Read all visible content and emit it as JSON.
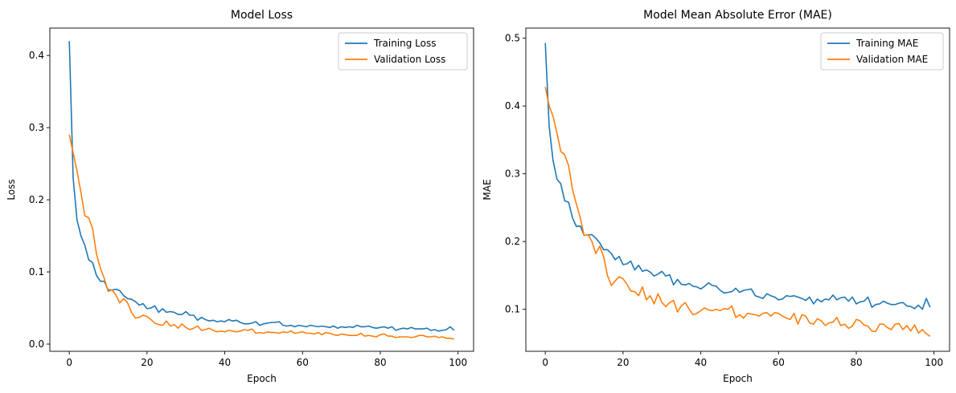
{
  "colors": {
    "training": "#1f77b4",
    "validation": "#ff7f0e"
  },
  "chart_data": [
    {
      "type": "line",
      "title": "Model Loss",
      "xlabel": "Epoch",
      "ylabel": "Loss",
      "xlim": [
        -5,
        104
      ],
      "ylim": [
        -0.01,
        0.438
      ],
      "xticks": [
        0,
        20,
        40,
        60,
        80,
        100
      ],
      "yticks": [
        0.0,
        0.1,
        0.2,
        0.3,
        0.4
      ],
      "ytick_labels": [
        "0.0",
        "0.1",
        "0.2",
        "0.3",
        "0.4"
      ],
      "grid": false,
      "legend": "top-right",
      "series": [
        {
          "name": "Training Loss",
          "color": "#1f77b4",
          "x": [
            0,
            1,
            2,
            3,
            4,
            5,
            6,
            7,
            8,
            9,
            10,
            11,
            12,
            13,
            14,
            15,
            16,
            17,
            18,
            19,
            20,
            21,
            22,
            23,
            24,
            25,
            26,
            27,
            28,
            29,
            30,
            31,
            32,
            33,
            34,
            35,
            36,
            37,
            38,
            39,
            40,
            41,
            42,
            43,
            44,
            45,
            46,
            47,
            48,
            49,
            50,
            51,
            52,
            53,
            54,
            55,
            56,
            57,
            58,
            59,
            60,
            61,
            62,
            63,
            64,
            65,
            66,
            67,
            68,
            69,
            70,
            71,
            72,
            73,
            74,
            75,
            76,
            77,
            78,
            79,
            80,
            81,
            82,
            83,
            84,
            85,
            86,
            87,
            88,
            89,
            90,
            91,
            92,
            93,
            94,
            95,
            96,
            97,
            98,
            99
          ],
          "values": [
            0.42,
            0.23,
            0.172,
            0.15,
            0.137,
            0.117,
            0.113,
            0.095,
            0.087,
            0.087,
            0.075,
            0.075,
            0.076,
            0.074,
            0.067,
            0.063,
            0.062,
            0.059,
            0.054,
            0.056,
            0.049,
            0.05,
            0.053,
            0.044,
            0.049,
            0.044,
            0.045,
            0.044,
            0.041,
            0.041,
            0.045,
            0.04,
            0.04,
            0.033,
            0.037,
            0.034,
            0.032,
            0.033,
            0.031,
            0.032,
            0.031,
            0.034,
            0.032,
            0.033,
            0.03,
            0.028,
            0.028,
            0.029,
            0.031,
            0.026,
            0.028,
            0.029,
            0.03,
            0.03,
            0.031,
            0.026,
            0.025,
            0.026,
            0.024,
            0.026,
            0.025,
            0.024,
            0.026,
            0.025,
            0.024,
            0.025,
            0.024,
            0.023,
            0.025,
            0.022,
            0.024,
            0.023,
            0.024,
            0.023,
            0.026,
            0.024,
            0.024,
            0.025,
            0.023,
            0.022,
            0.023,
            0.024,
            0.022,
            0.024,
            0.019,
            0.021,
            0.022,
            0.021,
            0.023,
            0.021,
            0.021,
            0.021,
            0.022,
            0.019,
            0.02,
            0.018,
            0.019,
            0.02,
            0.024,
            0.019
          ]
        },
        {
          "name": "Validation Loss",
          "color": "#ff7f0e",
          "x": [
            0,
            1,
            2,
            3,
            4,
            5,
            6,
            7,
            8,
            9,
            10,
            11,
            12,
            13,
            14,
            15,
            16,
            17,
            18,
            19,
            20,
            21,
            22,
            23,
            24,
            25,
            26,
            27,
            28,
            29,
            30,
            31,
            32,
            33,
            34,
            35,
            36,
            37,
            38,
            39,
            40,
            41,
            42,
            43,
            44,
            45,
            46,
            47,
            48,
            49,
            50,
            51,
            52,
            53,
            54,
            55,
            56,
            57,
            58,
            59,
            60,
            61,
            62,
            63,
            64,
            65,
            66,
            67,
            68,
            69,
            70,
            71,
            72,
            73,
            74,
            75,
            76,
            77,
            78,
            79,
            80,
            81,
            82,
            83,
            84,
            85,
            86,
            87,
            88,
            89,
            90,
            91,
            92,
            93,
            94,
            95,
            96,
            97,
            98,
            99
          ],
          "values": [
            0.29,
            0.265,
            0.24,
            0.21,
            0.178,
            0.175,
            0.16,
            0.125,
            0.105,
            0.091,
            0.073,
            0.075,
            0.068,
            0.057,
            0.063,
            0.057,
            0.044,
            0.036,
            0.037,
            0.04,
            0.038,
            0.034,
            0.029,
            0.027,
            0.026,
            0.032,
            0.025,
            0.027,
            0.022,
            0.028,
            0.023,
            0.02,
            0.022,
            0.025,
            0.019,
            0.02,
            0.022,
            0.019,
            0.017,
            0.018,
            0.017,
            0.019,
            0.018,
            0.017,
            0.018,
            0.02,
            0.019,
            0.021,
            0.015,
            0.016,
            0.015,
            0.017,
            0.016,
            0.016,
            0.015,
            0.017,
            0.016,
            0.018,
            0.015,
            0.016,
            0.017,
            0.015,
            0.015,
            0.014,
            0.016,
            0.013,
            0.016,
            0.015,
            0.013,
            0.012,
            0.014,
            0.013,
            0.012,
            0.012,
            0.012,
            0.015,
            0.011,
            0.012,
            0.011,
            0.01,
            0.013,
            0.014,
            0.011,
            0.011,
            0.009,
            0.01,
            0.01,
            0.01,
            0.009,
            0.01,
            0.012,
            0.012,
            0.01,
            0.01,
            0.011,
            0.009,
            0.01,
            0.008,
            0.008,
            0.007
          ]
        }
      ]
    },
    {
      "type": "line",
      "title": "Model Mean Absolute Error (MAE)",
      "xlabel": "Epoch",
      "ylabel": "MAE",
      "xlim": [
        -5,
        104
      ],
      "ylim": [
        0.038,
        0.515
      ],
      "xticks": [
        0,
        20,
        40,
        60,
        80,
        100
      ],
      "yticks": [
        0.1,
        0.2,
        0.3,
        0.4,
        0.5
      ],
      "ytick_labels": [
        "0.1",
        "0.2",
        "0.3",
        "0.4",
        "0.5"
      ],
      "grid": false,
      "legend": "top-right",
      "series": [
        {
          "name": "Training MAE",
          "color": "#1f77b4",
          "x": [
            0,
            1,
            2,
            3,
            4,
            5,
            6,
            7,
            8,
            9,
            10,
            11,
            12,
            13,
            14,
            15,
            16,
            17,
            18,
            19,
            20,
            21,
            22,
            23,
            24,
            25,
            26,
            27,
            28,
            29,
            30,
            31,
            32,
            33,
            34,
            35,
            36,
            37,
            38,
            39,
            40,
            41,
            42,
            43,
            44,
            45,
            46,
            47,
            48,
            49,
            50,
            51,
            52,
            53,
            54,
            55,
            56,
            57,
            58,
            59,
            60,
            61,
            62,
            63,
            64,
            65,
            66,
            67,
            68,
            69,
            70,
            71,
            72,
            73,
            74,
            75,
            76,
            77,
            78,
            79,
            80,
            81,
            82,
            83,
            84,
            85,
            86,
            87,
            88,
            89,
            90,
            91,
            92,
            93,
            94,
            95,
            96,
            97,
            98,
            99
          ],
          "values": [
            0.493,
            0.37,
            0.32,
            0.292,
            0.285,
            0.26,
            0.258,
            0.235,
            0.222,
            0.223,
            0.209,
            0.21,
            0.21,
            0.205,
            0.198,
            0.188,
            0.188,
            0.182,
            0.173,
            0.178,
            0.166,
            0.167,
            0.171,
            0.158,
            0.165,
            0.156,
            0.158,
            0.155,
            0.149,
            0.152,
            0.156,
            0.149,
            0.151,
            0.136,
            0.144,
            0.137,
            0.136,
            0.138,
            0.134,
            0.133,
            0.13,
            0.134,
            0.139,
            0.135,
            0.134,
            0.128,
            0.124,
            0.125,
            0.126,
            0.131,
            0.125,
            0.128,
            0.129,
            0.13,
            0.12,
            0.118,
            0.116,
            0.123,
            0.12,
            0.118,
            0.114,
            0.115,
            0.12,
            0.119,
            0.12,
            0.118,
            0.116,
            0.113,
            0.118,
            0.108,
            0.115,
            0.111,
            0.115,
            0.114,
            0.121,
            0.114,
            0.117,
            0.118,
            0.112,
            0.118,
            0.108,
            0.111,
            0.112,
            0.118,
            0.103,
            0.107,
            0.108,
            0.112,
            0.109,
            0.107,
            0.107,
            0.109,
            0.11,
            0.105,
            0.104,
            0.101,
            0.106,
            0.1,
            0.116,
            0.103
          ]
        },
        {
          "name": "Validation MAE",
          "color": "#ff7f0e",
          "x": [
            0,
            1,
            2,
            3,
            4,
            5,
            6,
            7,
            8,
            9,
            10,
            11,
            12,
            13,
            14,
            15,
            16,
            17,
            18,
            19,
            20,
            21,
            22,
            23,
            24,
            25,
            26,
            27,
            28,
            29,
            30,
            31,
            32,
            33,
            34,
            35,
            36,
            37,
            38,
            39,
            40,
            41,
            42,
            43,
            44,
            45,
            46,
            47,
            48,
            49,
            50,
            51,
            52,
            53,
            54,
            55,
            56,
            57,
            58,
            59,
            60,
            61,
            62,
            63,
            64,
            65,
            66,
            67,
            68,
            69,
            70,
            71,
            72,
            73,
            74,
            75,
            76,
            77,
            78,
            79,
            80,
            81,
            82,
            83,
            84,
            85,
            86,
            87,
            88,
            89,
            90,
            91,
            92,
            93,
            94,
            95,
            96,
            97,
            98,
            99
          ],
          "values": [
            0.428,
            0.4,
            0.385,
            0.36,
            0.333,
            0.328,
            0.312,
            0.277,
            0.255,
            0.235,
            0.209,
            0.21,
            0.2,
            0.182,
            0.193,
            0.178,
            0.15,
            0.135,
            0.142,
            0.148,
            0.145,
            0.137,
            0.127,
            0.126,
            0.12,
            0.133,
            0.114,
            0.12,
            0.108,
            0.123,
            0.11,
            0.104,
            0.11,
            0.113,
            0.096,
            0.105,
            0.11,
            0.1,
            0.092,
            0.094,
            0.098,
            0.102,
            0.099,
            0.098,
            0.1,
            0.098,
            0.101,
            0.1,
            0.105,
            0.088,
            0.092,
            0.087,
            0.094,
            0.093,
            0.092,
            0.09,
            0.094,
            0.095,
            0.09,
            0.095,
            0.094,
            0.09,
            0.087,
            0.085,
            0.094,
            0.078,
            0.092,
            0.09,
            0.08,
            0.078,
            0.086,
            0.083,
            0.076,
            0.08,
            0.081,
            0.088,
            0.076,
            0.078,
            0.072,
            0.075,
            0.085,
            0.083,
            0.077,
            0.075,
            0.068,
            0.067,
            0.078,
            0.078,
            0.073,
            0.07,
            0.078,
            0.079,
            0.07,
            0.076,
            0.068,
            0.077,
            0.065,
            0.07,
            0.064,
            0.06
          ]
        }
      ]
    }
  ]
}
